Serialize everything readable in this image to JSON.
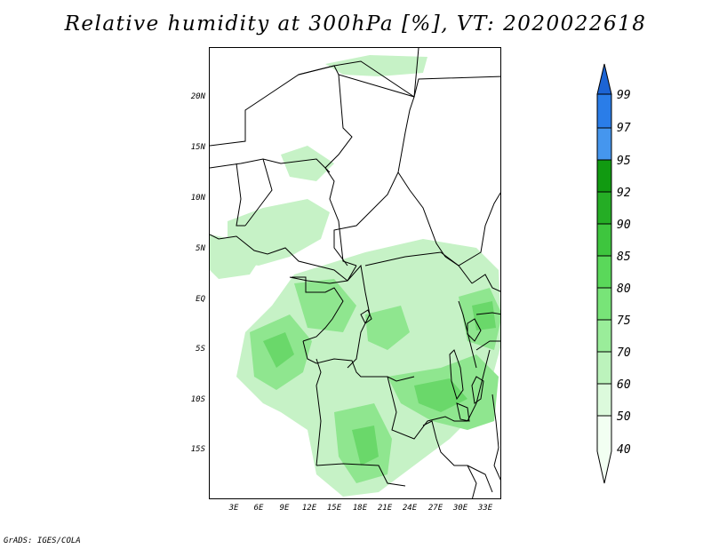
{
  "title": "Relative humidity at 300hPa [%], VT: 2020022618",
  "footer": "GrADS: IGES/COLA",
  "axes": {
    "lat_labels": [
      "20N",
      "15N",
      "10N",
      "5N",
      "EQ",
      "5S",
      "10S",
      "15S"
    ],
    "lon_labels": [
      "3E",
      "6E",
      "9E",
      "12E",
      "15E",
      "18E",
      "21E",
      "24E",
      "27E",
      "30E",
      "33E"
    ]
  },
  "colorbar": {
    "labels": [
      "99",
      "97",
      "95",
      "92",
      "90",
      "85",
      "80",
      "75",
      "70",
      "60",
      "50",
      "40"
    ],
    "colors": [
      "#1c64d4",
      "#2a7de8",
      "#4596ee",
      "#119a11",
      "#25ad25",
      "#3ec53e",
      "#5ad85a",
      "#78e478",
      "#9aed9a",
      "#bcf3bc",
      "#dcfadc",
      "#f2fff2"
    ]
  },
  "humidity_field": {
    "shade_levels": [
      {
        "threshold": "60",
        "color": "#c6f2c6"
      },
      {
        "threshold": "75",
        "color": "#8fe68f"
      },
      {
        "threshold": "80",
        "color": "#6ad86a"
      }
    ]
  }
}
